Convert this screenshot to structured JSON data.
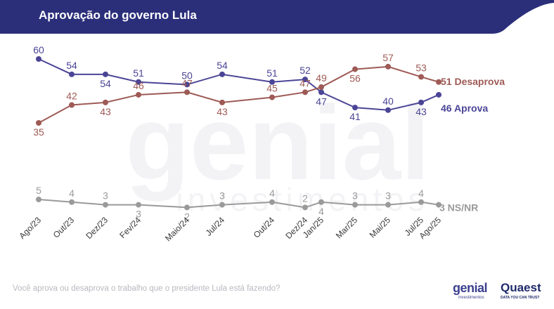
{
  "header": {
    "title": "Aprovação do governo Lula",
    "background_color": "#2b2f7a"
  },
  "chart_data": {
    "type": "line",
    "categories": [
      "Ago/23",
      "Out/23",
      "Dez/23",
      "Fev/24",
      "Maio/24",
      "Jul/24",
      "Out/24",
      "Dez/24",
      "Jan/25",
      "Mar/25",
      "Mai/25",
      "Jul/25",
      "Ago/25"
    ],
    "series": [
      {
        "name": "Aprova",
        "end_label": "46 Aprova",
        "color": "#4b4596",
        "values": [
          60,
          54,
          54,
          51,
          50,
          54,
          51,
          52,
          47,
          41,
          40,
          43,
          46
        ],
        "labels": [
          "60",
          "54",
          "54",
          "51",
          "50",
          "54",
          "51",
          "52",
          "47",
          "41",
          "40",
          "43",
          ""
        ]
      },
      {
        "name": "Desaprova",
        "end_label": "51 Desaprova",
        "color": "#9e5a55",
        "values": [
          35,
          42,
          43,
          46,
          47,
          43,
          45,
          47,
          49,
          56,
          57,
          53,
          51
        ],
        "labels": [
          "35",
          "42",
          "43",
          "46",
          "47",
          "43",
          "45",
          "47",
          "49",
          "56",
          "57",
          "53",
          ""
        ]
      },
      {
        "name": "NS/NR",
        "end_label": "3 NS/NR",
        "color": "#9a9a9a",
        "values": [
          5,
          4,
          3,
          3,
          2,
          3,
          4,
          2,
          4,
          3,
          3,
          4,
          3
        ],
        "labels": [
          "5",
          "4",
          "3",
          "3",
          "2",
          "3",
          "4",
          "2",
          "4",
          "3",
          "3",
          "4",
          ""
        ]
      }
    ],
    "title": "Aprovação do governo Lula",
    "xlabel": "",
    "ylabel": "",
    "grid": false,
    "legend": "end-of-line labels"
  },
  "footer": {
    "question": "Você aprova ou desaprova o trabalho que o presidente Lula está fazendo?",
    "logo_genial": "genial",
    "logo_genial_sub": "investimentos",
    "logo_quaest": "Quaest",
    "logo_quaest_sub": "DATA YOU CAN TRUST"
  },
  "watermark": {
    "word": "genial",
    "sub": "investimentos"
  }
}
